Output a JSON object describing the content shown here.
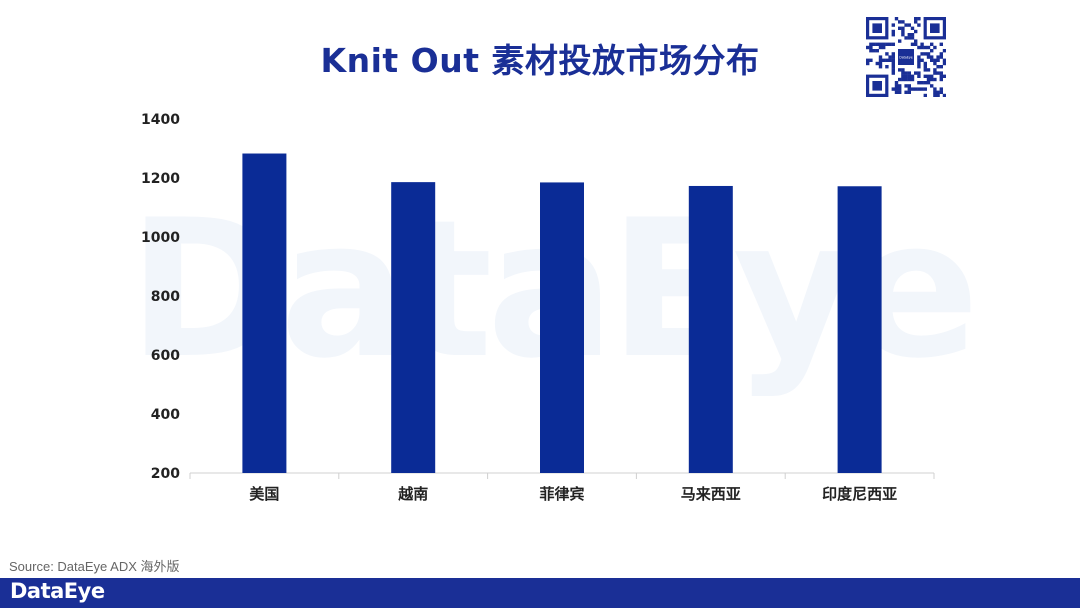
{
  "title": "Knit Out 素材投放市场分布",
  "watermark_text": "DataEye",
  "source": "Source: DataEye ADX 海外版",
  "footer_logo": "DataEye",
  "qr_center_text": "DataEye",
  "colors": {
    "title": "#1a2f96",
    "bar": "#0a2b96",
    "footer": "#1a2f96",
    "watermark": "#f2f6fb"
  },
  "chart_data": {
    "type": "bar",
    "categories": [
      "美国",
      "越南",
      "菲律宾",
      "马来西亚",
      "印度尼西亚"
    ],
    "values": [
      1283,
      1186,
      1185,
      1173,
      1172
    ],
    "ylim": [
      200,
      1400
    ],
    "yticks": [
      200,
      400,
      600,
      800,
      1000,
      1200,
      1400
    ],
    "xlabel": "",
    "ylabel": "",
    "grid": false,
    "legend": "none"
  }
}
